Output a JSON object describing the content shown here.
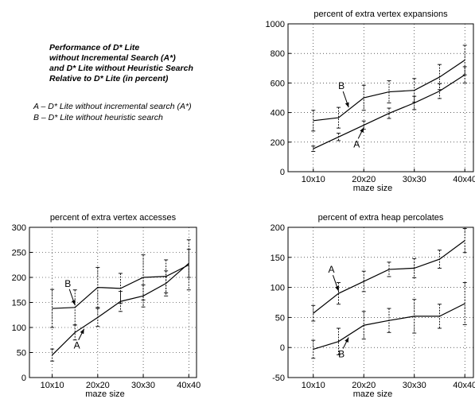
{
  "heading": {
    "lines": [
      "Performance of D* Lite",
      "without Incremental Search (A*)",
      "and D* Lite without Heuristic Search",
      "Relative to D* Lite (in percent)"
    ]
  },
  "legend": {
    "a": "A – D* Lite without incremental search (A*)",
    "b": "B – D* Lite without heuristic search"
  },
  "chart_data": [
    {
      "type": "line",
      "title": "percent of extra vertex expansions",
      "xlabel": "maze size",
      "ylabel": "",
      "categories": [
        "10x10",
        "20x20",
        "30x30",
        "40x40"
      ],
      "x": [
        10,
        15,
        20,
        25,
        30,
        35,
        40
      ],
      "ylim": [
        0,
        1000
      ],
      "yticks": [
        0,
        200,
        400,
        600,
        800,
        1000
      ],
      "grid": true,
      "series": [
        {
          "name": "A",
          "values": [
            155,
            235,
            315,
            395,
            465,
            545,
            655
          ],
          "errors": [
            18,
            25,
            28,
            35,
            45,
            50,
            55
          ]
        },
        {
          "name": "B",
          "values": [
            345,
            365,
            500,
            540,
            550,
            640,
            755
          ],
          "errors": [
            70,
            70,
            85,
            75,
            80,
            85,
            100
          ]
        }
      ],
      "annotations": [
        {
          "label": "B",
          "series": "B",
          "x": 17
        },
        {
          "label": "A",
          "series": "A",
          "x": 20
        }
      ]
    },
    {
      "type": "line",
      "title": "percent of extra vertex accesses",
      "xlabel": "maze size",
      "ylabel": "",
      "categories": [
        "10x10",
        "20x20",
        "30x30",
        "40x40"
      ],
      "x": [
        10,
        15,
        20,
        25,
        30,
        35,
        40
      ],
      "ylim": [
        0,
        300
      ],
      "yticks": [
        0,
        50,
        100,
        150,
        200,
        250,
        300
      ],
      "grid": true,
      "series": [
        {
          "name": "A",
          "values": [
            45,
            90,
            120,
            152,
            163,
            188,
            228
          ],
          "errors": [
            12,
            15,
            18,
            20,
            22,
            25,
            28
          ]
        },
        {
          "name": "B",
          "values": [
            138,
            140,
            180,
            178,
            200,
            202,
            225
          ],
          "errors": [
            38,
            35,
            40,
            30,
            45,
            33,
            50
          ]
        }
      ],
      "annotations": [
        {
          "label": "B",
          "series": "B",
          "x": 15
        },
        {
          "label": "A",
          "series": "A",
          "x": 17
        }
      ]
    },
    {
      "type": "line",
      "title": "percent of extra heap percolates",
      "xlabel": "maze size",
      "ylabel": "",
      "categories": [
        "10x10",
        "20x20",
        "30x30",
        "40x40"
      ],
      "x": [
        10,
        15,
        20,
        25,
        30,
        35,
        40
      ],
      "ylim": [
        -50,
        200
      ],
      "yticks": [
        -50,
        0,
        50,
        100,
        150,
        200
      ],
      "grid": true,
      "series": [
        {
          "name": "A",
          "values": [
            57,
            90,
            110,
            130,
            132,
            147,
            178
          ],
          "errors": [
            13,
            18,
            17,
            12,
            16,
            15,
            20
          ]
        },
        {
          "name": "B",
          "values": [
            -3,
            10,
            37,
            45,
            52,
            52,
            73
          ],
          "errors": [
            15,
            22,
            23,
            20,
            28,
            20,
            35
          ]
        }
      ],
      "annotations": [
        {
          "label": "A",
          "series": "A",
          "x": 15
        },
        {
          "label": "B",
          "series": "B",
          "x": 17
        }
      ]
    }
  ]
}
